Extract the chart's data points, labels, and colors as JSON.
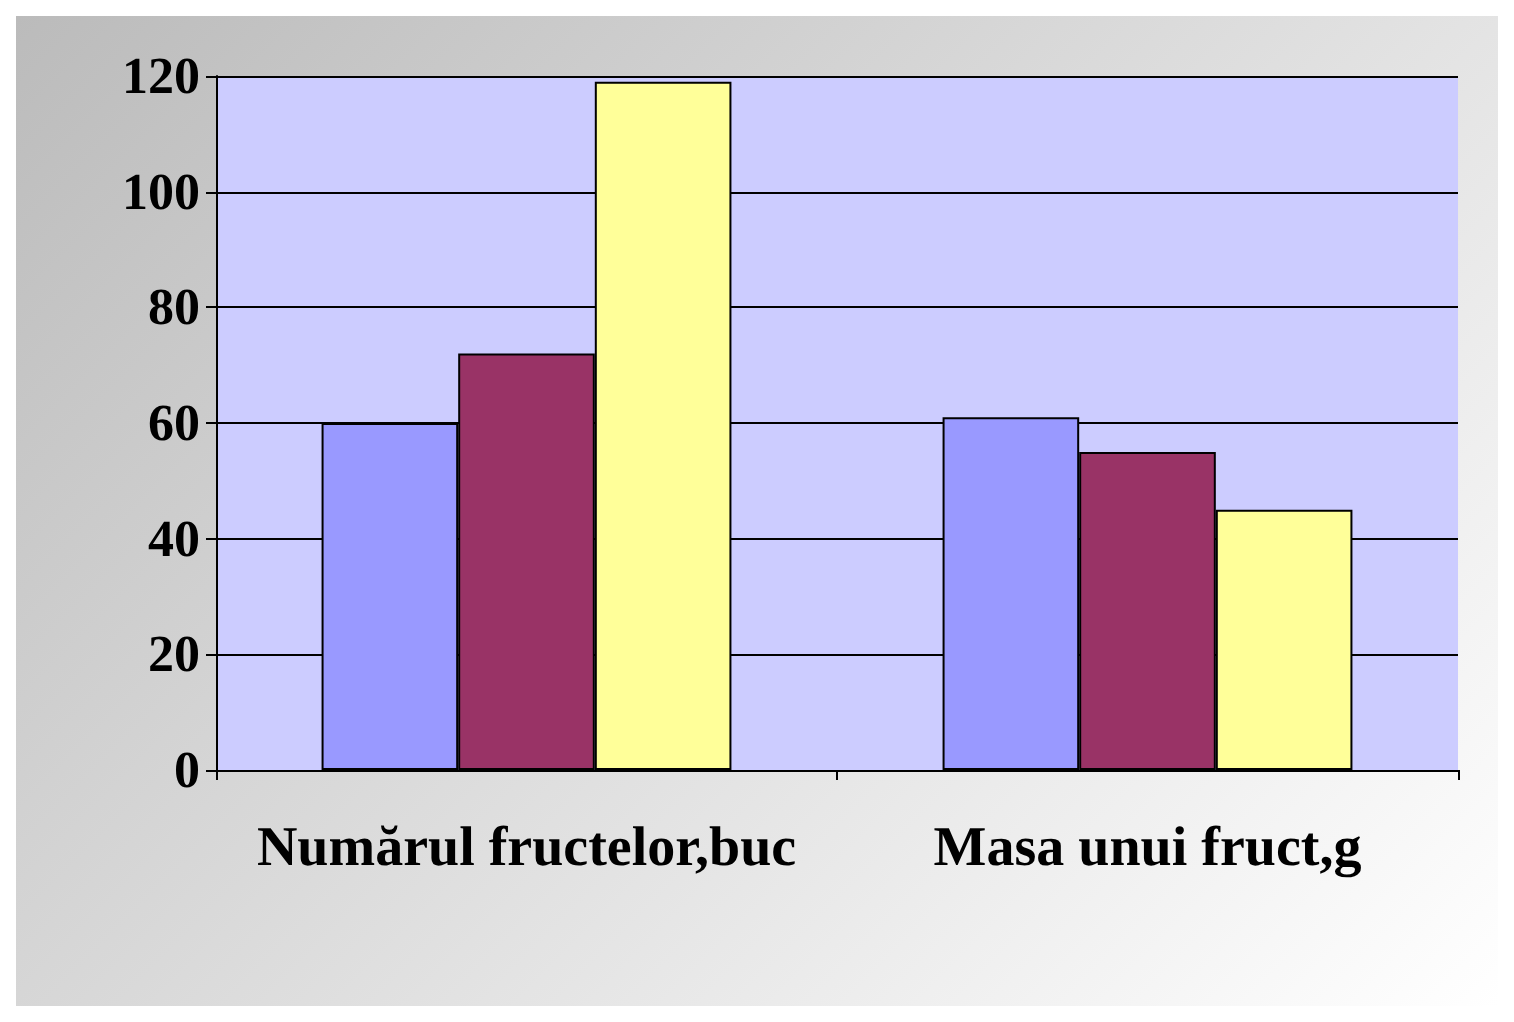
{
  "chart_data": {
    "type": "bar",
    "categories": [
      "Numărul fructelor,buc",
      "Masa unui fruct,g"
    ],
    "series": [
      {
        "color": "#9999ff",
        "values": [
          60,
          61
        ]
      },
      {
        "color": "#993366",
        "values": [
          72,
          55
        ]
      },
      {
        "color": "#ffff99",
        "values": [
          119,
          45
        ]
      }
    ],
    "ylim": [
      0,
      120
    ],
    "yticks": [
      0,
      20,
      40,
      60,
      80,
      100,
      120
    ],
    "grid": "y"
  }
}
